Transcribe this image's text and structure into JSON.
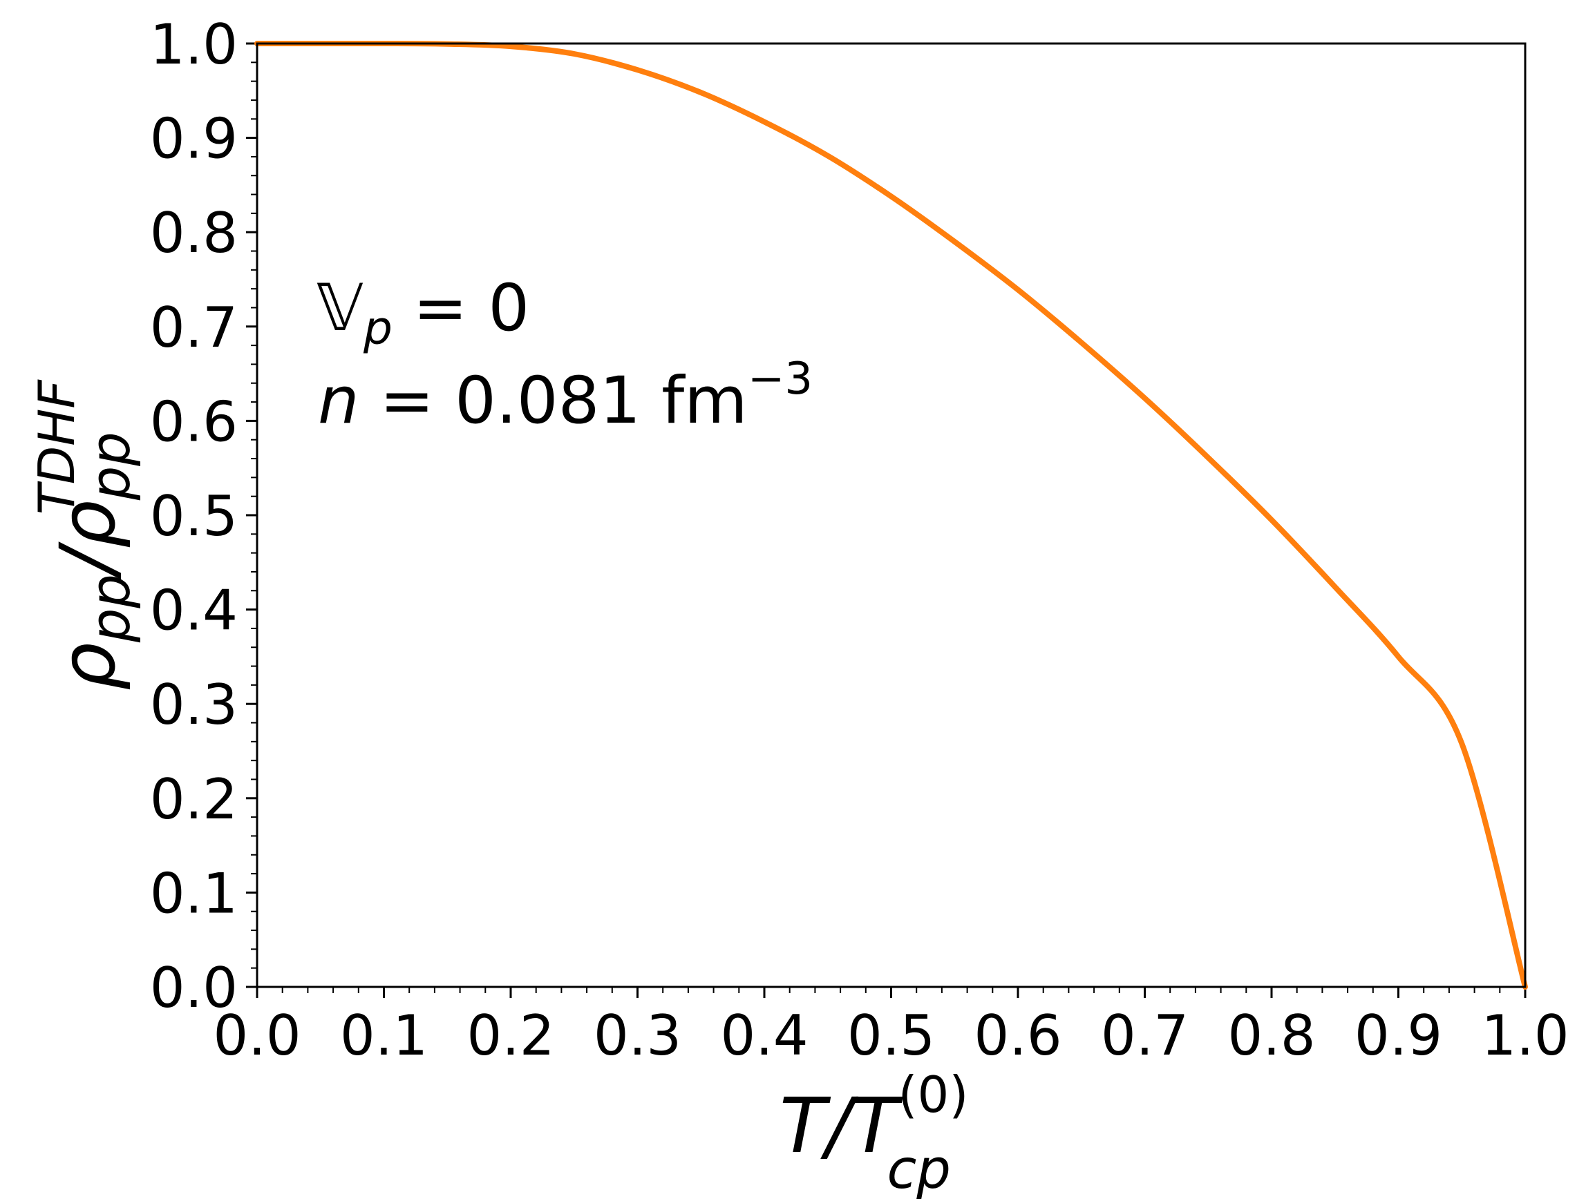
{
  "chart_data": {
    "type": "line",
    "xlim": [
      0.0,
      1.0
    ],
    "ylim": [
      0.0,
      1.0
    ],
    "x_ticks": [
      "0.0",
      "0.1",
      "0.2",
      "0.3",
      "0.4",
      "0.5",
      "0.6",
      "0.7",
      "0.8",
      "0.9",
      "1.0"
    ],
    "y_ticks": [
      "0.0",
      "0.1",
      "0.2",
      "0.3",
      "0.4",
      "0.5",
      "0.6",
      "0.7",
      "0.8",
      "0.9",
      "1.0"
    ],
    "grid": false,
    "minor_ticks": true,
    "xlabel": {
      "main": "T/T",
      "sub": "cp",
      "sup": "(0)"
    },
    "ylabel": {
      "part1": "ρ",
      "sub1": "pp",
      "part2": "/ρ",
      "sub2": "pp",
      "sup2": "TDHF"
    },
    "annotations": [
      {
        "symbol": "𝕍",
        "sub": "p",
        "rest": " = 0"
      },
      {
        "symbol": "n",
        "rest": " =  0.081 fm",
        "sup": "−3"
      }
    ],
    "series": [
      {
        "color": "#ff7f0e",
        "x": [
          0.0,
          0.05,
          0.1,
          0.15,
          0.2,
          0.25,
          0.3,
          0.35,
          0.4,
          0.45,
          0.5,
          0.55,
          0.6,
          0.65,
          0.7,
          0.75,
          0.8,
          0.85,
          0.9,
          0.95,
          1.0
        ],
        "y": [
          1.0,
          1.0,
          1.0,
          0.9995,
          0.997,
          0.989,
          0.972,
          0.948,
          0.917,
          0.881,
          0.838,
          0.79,
          0.739,
          0.683,
          0.624,
          0.561,
          0.495,
          0.424,
          0.35,
          0.258,
          0.0
        ]
      }
    ]
  }
}
